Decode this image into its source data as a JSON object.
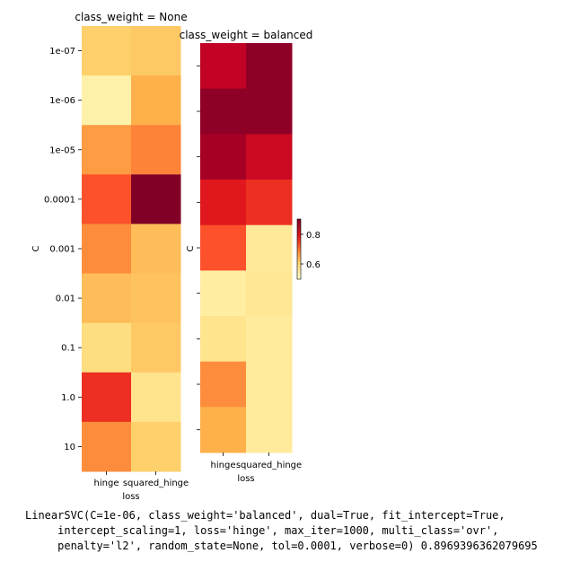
{
  "chart_data": [
    {
      "type": "heatmap",
      "title": "class_weight = None",
      "xlabel": "loss",
      "ylabel": "C",
      "x": [
        "hinge",
        "squared_hinge"
      ],
      "y": [
        "1e-07",
        "1e-06",
        "1e-05",
        "0.0001",
        "0.001",
        "0.01",
        "0.1",
        "1.0",
        "10"
      ],
      "cmap": "YlOrRd",
      "values": [
        [
          0.28,
          0.3
        ],
        [
          0.1,
          0.38
        ],
        [
          0.45,
          0.52
        ],
        [
          0.62,
          1.0
        ],
        [
          0.5,
          0.34
        ],
        [
          0.34,
          0.32
        ],
        [
          0.22,
          0.3
        ],
        [
          0.7,
          0.18
        ],
        [
          0.5,
          0.28
        ]
      ]
    },
    {
      "type": "heatmap",
      "title": "class_weight = balanced",
      "xlabel": "loss",
      "ylabel": "C",
      "x": [
        "hinge",
        "squared_hinge"
      ],
      "y": [
        "1e-07",
        "1e-06",
        "1e-05",
        "0.0001",
        "0.001",
        "0.01",
        "0.1",
        "1.0",
        "10"
      ],
      "cmap": "YlOrRd",
      "colorbar_ticks": [
        "0.8",
        "0.6"
      ],
      "values": [
        [
          0.86,
          0.97
        ],
        [
          0.97,
          0.97
        ],
        [
          0.92,
          0.83
        ],
        [
          0.76,
          0.7
        ],
        [
          0.62,
          0.15
        ],
        [
          0.12,
          0.16
        ],
        [
          0.18,
          0.14
        ],
        [
          0.5,
          0.14
        ],
        [
          0.38,
          0.14
        ]
      ]
    }
  ],
  "console": {
    "line1": "LinearSVC(C=1e-06, class_weight='balanced', dual=True, fit_intercept=True,",
    "line2": "     intercept_scaling=1, loss='hinge', max_iter=1000, multi_class='ovr',",
    "line3": "     penalty='l2', random_state=None, tol=0.0001, verbose=0) 0.8969396362079695"
  }
}
